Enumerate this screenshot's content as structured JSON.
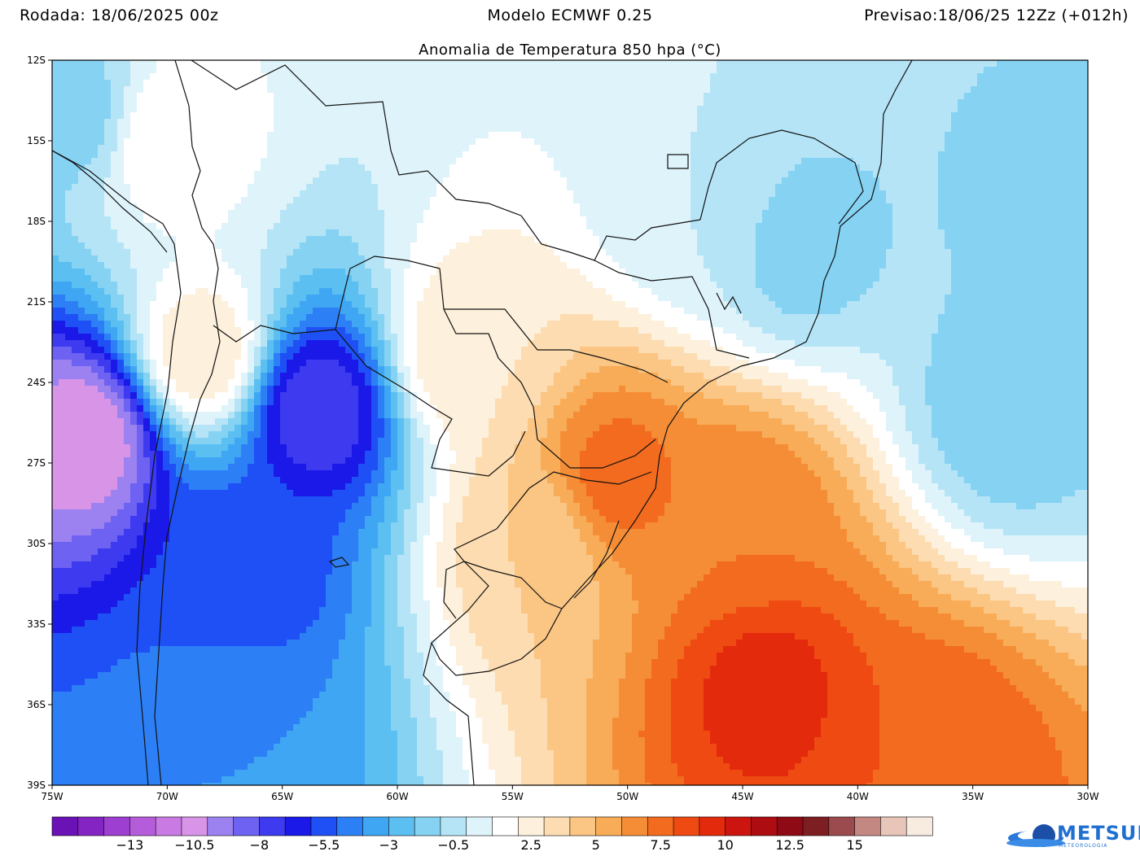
{
  "header": {
    "run": "Rodada: 18/06/2025 00z",
    "model": "Modelo ECMWF 0.25",
    "forecast": "Previsao:18/06/25 12Zz (+012h)"
  },
  "map": {
    "title": "Anomalia de Temperatura 850 hpa (°C)",
    "lat_labels": [
      "12S",
      "15S",
      "18S",
      "21S",
      "24S",
      "27S",
      "30S",
      "33S",
      "36S",
      "39S"
    ],
    "lon_labels": [
      "75W",
      "70W",
      "65W",
      "60W",
      "55W",
      "50W",
      "45W",
      "40W",
      "35W",
      "30W"
    ],
    "lat_range": [
      -39,
      -12
    ],
    "lon_range": [
      -75,
      -30
    ],
    "field": [
      {
        "name": "chile-cold-core",
        "lon": -73.5,
        "lat": -26,
        "value": -11
      },
      {
        "name": "argentina-cold-north",
        "lon": -63.5,
        "lat": -25,
        "value": -8
      },
      {
        "name": "argentina-cold-south",
        "lon": -66.5,
        "lat": -31,
        "value": -6
      },
      {
        "name": "patagonia-cold",
        "lon": -66.5,
        "lat": -37,
        "value": -4
      },
      {
        "name": "andes-warm-band",
        "lon": -68.5,
        "lat": -23,
        "value": 3
      },
      {
        "name": "bolivia-warm",
        "lon": -70,
        "lat": -15,
        "value": 2
      },
      {
        "name": "paraguay-warm",
        "lon": -57,
        "lat": -23,
        "value": 3
      },
      {
        "name": "south-brazil-warm",
        "lon": -50.5,
        "lat": -27.5,
        "value": 7.5
      },
      {
        "name": "rio-grande-warm",
        "lon": -54,
        "lat": -30,
        "value": 4
      },
      {
        "name": "atlantic-warm",
        "lon": -45,
        "lat": -29,
        "value": 7
      },
      {
        "name": "atlantic-warm-core",
        "lon": -44,
        "lat": -35.5,
        "value": 9.5
      },
      {
        "name": "atlantic-warm-southeast",
        "lon": -37,
        "lat": -38,
        "value": 8
      },
      {
        "name": "brazil-central-neutral",
        "lon": -47,
        "lat": -17.5,
        "value": 0
      },
      {
        "name": "brazil-east-cold",
        "lon": -42.5,
        "lat": -19,
        "value": -1.5
      },
      {
        "name": "atlantic-northeast-cold",
        "lon": -33.5,
        "lat": -25,
        "value": -1.8
      },
      {
        "name": "atlantic-east-cold",
        "lon": -32,
        "lat": -17,
        "value": -1.3
      },
      {
        "name": "pacific-northwest-cold",
        "lon": -74,
        "lat": -14,
        "value": -1.5
      }
    ]
  },
  "colorbar": {
    "levels": [
      -15,
      -14,
      -13,
      -12,
      -11,
      -10,
      -9,
      -8,
      -7,
      -6,
      -5,
      -4,
      -3,
      -2,
      -1,
      0,
      1,
      2,
      3,
      4,
      5,
      6,
      7,
      8,
      9,
      10,
      11,
      12,
      13,
      14,
      15,
      16
    ],
    "colors": [
      "#6a12b5",
      "#8424c3",
      "#9d3fd0",
      "#b55cdb",
      "#c97ae3",
      "#d895e8",
      "#9b82f0",
      "#6d62f2",
      "#3d3af0",
      "#1a19e8",
      "#1e50f5",
      "#2d7ff5",
      "#3fa6f3",
      "#5cbff2",
      "#85d2f3",
      "#b5e4f6",
      "#dff3fa",
      "#ffffff",
      "#fdf0dc",
      "#fcdcb0",
      "#fbc583",
      "#f8ac58",
      "#f58d36",
      "#f26b1f",
      "#ee4a12",
      "#e42a0d",
      "#cc150f",
      "#ad0d11",
      "#8e0a14",
      "#7d1f22",
      "#9b4a4d",
      "#c48883",
      "#e7c5b8",
      "#f8ebe0"
    ],
    "labels": [
      "-13",
      "-10.5",
      "-8",
      "-5.5",
      "-3",
      "-0.5",
      "2.5",
      "5",
      "7.5",
      "10",
      "12.5",
      "15"
    ]
  },
  "logo": {
    "name": "METSUL",
    "sub": "METEOROLOGIA"
  },
  "colors": {
    "coast": "#111111",
    "frame": "#000000"
  }
}
